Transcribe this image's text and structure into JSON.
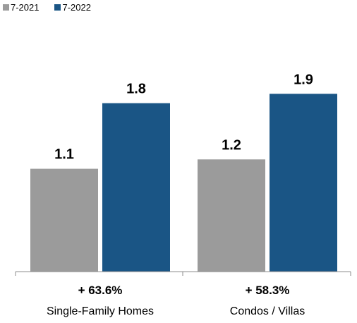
{
  "chart_data": {
    "type": "bar",
    "categories": [
      "Single-Family Homes",
      "Condos / Villas"
    ],
    "series": [
      {
        "name": "7-2021",
        "values": [
          1.1,
          1.2
        ],
        "color": "#9b9b9b"
      },
      {
        "name": "7-2022",
        "values": [
          1.8,
          1.9
        ],
        "color": "#1a5585"
      }
    ],
    "data_labels": [
      [
        "1.1",
        "1.8"
      ],
      [
        "1.2",
        "1.9"
      ]
    ],
    "changes": [
      "+ 63.6%",
      "+ 58.3%"
    ],
    "ylim": [
      0,
      2.2
    ],
    "grid": false,
    "legend": "top-left",
    "axis_color": "#8c8c8c"
  }
}
